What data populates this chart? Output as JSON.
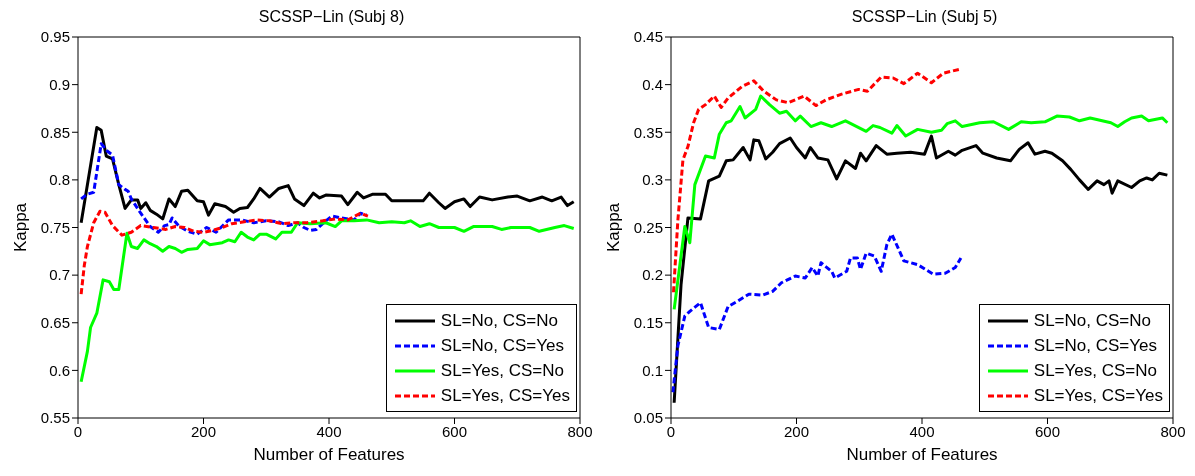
{
  "chart_data": [
    {
      "type": "line",
      "title": "SCSSP−Lin (Subj 8)",
      "xlabel": "Number of Features",
      "ylabel": "Kappa",
      "xlim": [
        0,
        800
      ],
      "xticks": [
        0,
        200,
        400,
        600,
        800
      ],
      "ylim": [
        0.55,
        0.95
      ],
      "yticks": [
        0.55,
        0.6,
        0.65,
        0.7,
        0.75,
        0.8,
        0.85,
        0.9,
        0.95
      ],
      "legend": "bottom right",
      "series": [
        {
          "name": "SL=No, CS=No",
          "color": "#000000",
          "line_style": "solid",
          "x": [
            5,
            30,
            37,
            45,
            55,
            65,
            75,
            85,
            95,
            100,
            108,
            115,
            125,
            135,
            145,
            155,
            165,
            175,
            190,
            200,
            208,
            218,
            235,
            248,
            258,
            270,
            280,
            290,
            305,
            320,
            335,
            345,
            360,
            375,
            385,
            395,
            420,
            430,
            445,
            455,
            470,
            490,
            500,
            550,
            560,
            575,
            585,
            600,
            615,
            625,
            640,
            660,
            685,
            700,
            720,
            740,
            755,
            770,
            780,
            790
          ],
          "values": [
            0.755,
            0.855,
            0.852,
            0.825,
            0.822,
            0.795,
            0.77,
            0.779,
            0.779,
            0.77,
            0.776,
            0.768,
            0.764,
            0.759,
            0.78,
            0.772,
            0.788,
            0.789,
            0.778,
            0.777,
            0.763,
            0.775,
            0.772,
            0.766,
            0.77,
            0.771,
            0.78,
            0.791,
            0.782,
            0.791,
            0.794,
            0.78,
            0.773,
            0.786,
            0.781,
            0.784,
            0.783,
            0.774,
            0.787,
            0.781,
            0.785,
            0.785,
            0.778,
            0.778,
            0.786,
            0.776,
            0.77,
            0.777,
            0.78,
            0.772,
            0.782,
            0.779,
            0.782,
            0.783,
            0.778,
            0.782,
            0.778,
            0.782,
            0.773,
            0.777
          ]
        },
        {
          "name": "SL=No, CS=Yes",
          "color": "#0000ff",
          "line_style": "dashed",
          "x": [
            5,
            15,
            25,
            37,
            47,
            55,
            65,
            75,
            80,
            85,
            100,
            115,
            128,
            138,
            145,
            150,
            160,
            175,
            190,
            205,
            220,
            240,
            260,
            280,
            300,
            320,
            335,
            350,
            360,
            370,
            380,
            395,
            405,
            420,
            440,
            450,
            460
          ],
          "values": [
            0.78,
            0.785,
            0.787,
            0.838,
            0.83,
            0.826,
            0.795,
            0.79,
            0.788,
            0.78,
            0.765,
            0.751,
            0.745,
            0.752,
            0.753,
            0.76,
            0.752,
            0.746,
            0.743,
            0.75,
            0.745,
            0.758,
            0.758,
            0.755,
            0.757,
            0.756,
            0.752,
            0.755,
            0.75,
            0.747,
            0.748,
            0.757,
            0.762,
            0.76,
            0.758,
            0.765,
            0.763
          ]
        },
        {
          "name": "SL=Yes, CS=No",
          "color": "#00ff00",
          "line_style": "solid",
          "x": [
            5,
            15,
            20,
            30,
            40,
            50,
            57,
            65,
            78,
            85,
            95,
            105,
            115,
            125,
            135,
            145,
            155,
            165,
            175,
            190,
            200,
            210,
            230,
            240,
            250,
            260,
            270,
            280,
            290,
            300,
            315,
            325,
            340,
            350,
            370,
            395,
            410,
            420,
            440,
            460,
            480,
            500,
            520,
            530,
            545,
            560,
            575,
            600,
            615,
            630,
            660,
            675,
            690,
            720,
            735,
            760,
            775,
            790
          ],
          "values": [
            0.588,
            0.62,
            0.645,
            0.66,
            0.695,
            0.693,
            0.685,
            0.685,
            0.744,
            0.73,
            0.728,
            0.737,
            0.733,
            0.73,
            0.725,
            0.73,
            0.728,
            0.724,
            0.727,
            0.728,
            0.736,
            0.732,
            0.734,
            0.737,
            0.735,
            0.745,
            0.74,
            0.737,
            0.743,
            0.743,
            0.738,
            0.745,
            0.745,
            0.755,
            0.754,
            0.755,
            0.751,
            0.757,
            0.757,
            0.758,
            0.755,
            0.756,
            0.755,
            0.757,
            0.751,
            0.754,
            0.75,
            0.75,
            0.746,
            0.751,
            0.751,
            0.748,
            0.75,
            0.75,
            0.746,
            0.75,
            0.752,
            0.749
          ]
        },
        {
          "name": "SL=Yes, CS=Yes",
          "color": "#ff0000",
          "line_style": "dashed",
          "x": [
            5,
            10,
            15,
            25,
            35,
            43,
            55,
            70,
            85,
            100,
            120,
            140,
            155,
            170,
            185,
            200,
            215,
            230,
            245,
            265,
            285,
            305,
            325,
            345,
            365,
            390,
            410,
            430,
            450,
            462
          ],
          "values": [
            0.68,
            0.71,
            0.73,
            0.755,
            0.767,
            0.766,
            0.752,
            0.742,
            0.745,
            0.752,
            0.75,
            0.748,
            0.751,
            0.75,
            0.746,
            0.745,
            0.747,
            0.75,
            0.754,
            0.756,
            0.758,
            0.757,
            0.754,
            0.755,
            0.755,
            0.757,
            0.759,
            0.758,
            0.765,
            0.762
          ]
        }
      ]
    },
    {
      "type": "line",
      "title": "SCSSP−Lin (Subj 5)",
      "xlabel": "Number of Features",
      "ylabel": "Kappa",
      "xlim": [
        0,
        800
      ],
      "xticks": [
        0,
        200,
        400,
        600,
        800
      ],
      "ylim": [
        0.05,
        0.45
      ],
      "yticks": [
        0.05,
        0.1,
        0.15,
        0.2,
        0.25,
        0.3,
        0.35,
        0.4,
        0.45
      ],
      "legend": "bottom right",
      "series": [
        {
          "name": "SL=No, CS=No",
          "color": "#000000",
          "line_style": "solid",
          "x": [
            5,
            16,
            27,
            47,
            60,
            77,
            88,
            99,
            115,
            126,
            132,
            140,
            151,
            162,
            173,
            190,
            200,
            214,
            222,
            234,
            250,
            264,
            278,
            294,
            302,
            311,
            327,
            344,
            360,
            382,
            404,
            415,
            423,
            442,
            453,
            464,
            486,
            497,
            519,
            541,
            555,
            569,
            580,
            596,
            607,
            624,
            637,
            651,
            665,
            679,
            690,
            698,
            703,
            712,
            734,
            747,
            758,
            767,
            778,
            791
          ],
          "values": [
            0.066,
            0.19,
            0.26,
            0.259,
            0.299,
            0.304,
            0.32,
            0.321,
            0.334,
            0.321,
            0.342,
            0.341,
            0.322,
            0.329,
            0.338,
            0.344,
            0.334,
            0.323,
            0.334,
            0.323,
            0.321,
            0.301,
            0.32,
            0.312,
            0.328,
            0.32,
            0.336,
            0.327,
            0.328,
            0.329,
            0.327,
            0.346,
            0.323,
            0.33,
            0.326,
            0.331,
            0.336,
            0.328,
            0.323,
            0.32,
            0.332,
            0.339,
            0.327,
            0.33,
            0.328,
            0.32,
            0.311,
            0.3,
            0.29,
            0.299,
            0.295,
            0.299,
            0.286,
            0.299,
            0.292,
            0.299,
            0.302,
            0.3,
            0.307,
            0.305
          ]
        },
        {
          "name": "SL=No, CS=Yes",
          "color": "#0000ff",
          "line_style": "dashed",
          "x": [
            3,
            11,
            22,
            30,
            47,
            60,
            77,
            91,
            107,
            124,
            146,
            162,
            176,
            198,
            214,
            225,
            234,
            239,
            256,
            261,
            280,
            286,
            297,
            302,
            311,
            324,
            335,
            344,
            352,
            371,
            393,
            418,
            437,
            453,
            462
          ],
          "values": [
            0.077,
            0.126,
            0.157,
            0.162,
            0.171,
            0.145,
            0.143,
            0.167,
            0.173,
            0.18,
            0.179,
            0.183,
            0.192,
            0.199,
            0.197,
            0.208,
            0.199,
            0.213,
            0.204,
            0.197,
            0.204,
            0.218,
            0.218,
            0.206,
            0.223,
            0.22,
            0.204,
            0.232,
            0.243,
            0.215,
            0.211,
            0.201,
            0.202,
            0.208,
            0.218
          ]
        },
        {
          "name": "SL=Yes, CS=No",
          "color": "#00ff00",
          "line_style": "solid",
          "x": [
            5,
            22,
            30,
            38,
            55,
            69,
            77,
            88,
            96,
            110,
            118,
            135,
            143,
            157,
            173,
            184,
            198,
            206,
            223,
            239,
            256,
            278,
            311,
            322,
            333,
            352,
            360,
            374,
            393,
            415,
            431,
            440,
            453,
            464,
            492,
            514,
            538,
            558,
            574,
            596,
            615,
            635,
            651,
            668,
            701,
            712,
            723,
            734,
            750,
            761,
            783,
            791
          ],
          "values": [
            0.164,
            0.251,
            0.234,
            0.295,
            0.325,
            0.323,
            0.348,
            0.36,
            0.362,
            0.377,
            0.365,
            0.374,
            0.388,
            0.379,
            0.37,
            0.372,
            0.362,
            0.367,
            0.356,
            0.36,
            0.356,
            0.362,
            0.351,
            0.357,
            0.355,
            0.349,
            0.357,
            0.346,
            0.353,
            0.35,
            0.352,
            0.359,
            0.362,
            0.356,
            0.36,
            0.361,
            0.353,
            0.361,
            0.36,
            0.361,
            0.367,
            0.366,
            0.362,
            0.365,
            0.36,
            0.356,
            0.361,
            0.365,
            0.367,
            0.362,
            0.365,
            0.36
          ]
        },
        {
          "name": "SL=Yes, CS=Yes",
          "color": "#ff0000",
          "line_style": "dashed",
          "x": [
            4,
            11,
            19,
            27,
            36,
            44,
            55,
            69,
            80,
            91,
            113,
            132,
            148,
            168,
            187,
            212,
            231,
            247,
            272,
            299,
            313,
            335,
            354,
            371,
            393,
            415,
            434,
            459,
            462
          ],
          "values": [
            0.182,
            0.258,
            0.321,
            0.335,
            0.36,
            0.374,
            0.379,
            0.388,
            0.376,
            0.386,
            0.398,
            0.404,
            0.393,
            0.384,
            0.381,
            0.388,
            0.378,
            0.384,
            0.39,
            0.395,
            0.393,
            0.408,
            0.407,
            0.401,
            0.412,
            0.402,
            0.412,
            0.416,
            0.414
          ]
        }
      ]
    }
  ]
}
